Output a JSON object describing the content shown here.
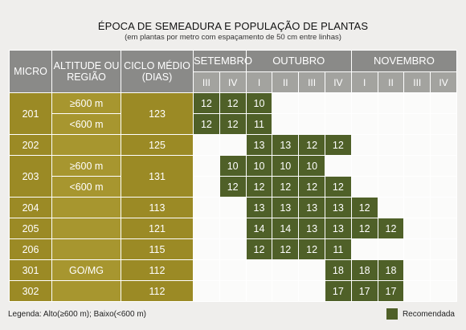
{
  "title": "ÉPOCA DE SEMEADURA E POPULAÇÃO DE PLANTAS",
  "subtitle": "(em plantas por metro com espaçamento de 50 cm entre linhas)",
  "headers": {
    "micro": "MICRO",
    "altitude": "ALTITUDE OU REGIÃO",
    "ciclo": "CICLO MÉDIO (DIAS)",
    "setembro": "SETEMBRO",
    "outubro": "OUTUBRO",
    "novembro": "NOVEMBRO",
    "periods": [
      "III",
      "IV",
      "I",
      "II",
      "III",
      "IV",
      "I",
      "II",
      "III",
      "IV"
    ]
  },
  "rows": [
    {
      "micro": "201",
      "altitude": "≥600 m",
      "ciclo": "123",
      "cells": [
        "12",
        "12",
        "10",
        "",
        "",
        "",
        "",
        "",
        "",
        ""
      ]
    },
    {
      "micro": "",
      "altitude": "<600 m",
      "ciclo": "",
      "cells": [
        "12",
        "12",
        "11",
        "",
        "",
        "",
        "",
        "",
        "",
        ""
      ]
    },
    {
      "micro": "202",
      "altitude": "",
      "ciclo": "125",
      "cells": [
        "",
        "",
        "13",
        "13",
        "12",
        "12",
        "",
        "",
        "",
        ""
      ]
    },
    {
      "micro": "203",
      "altitude": "≥600 m",
      "ciclo": "131",
      "cells": [
        "",
        "10",
        "10",
        "10",
        "10",
        "",
        "",
        "",
        "",
        ""
      ]
    },
    {
      "micro": "",
      "altitude": "<600 m",
      "ciclo": "",
      "cells": [
        "",
        "12",
        "12",
        "12",
        "12",
        "12",
        "",
        "",
        "",
        ""
      ]
    },
    {
      "micro": "204",
      "altitude": "",
      "ciclo": "113",
      "cells": [
        "",
        "",
        "13",
        "13",
        "13",
        "13",
        "12",
        "",
        "",
        ""
      ]
    },
    {
      "micro": "205",
      "altitude": "",
      "ciclo": "121",
      "cells": [
        "",
        "",
        "14",
        "14",
        "13",
        "13",
        "12",
        "12",
        "",
        ""
      ]
    },
    {
      "micro": "206",
      "altitude": "",
      "ciclo": "115",
      "cells": [
        "",
        "",
        "12",
        "12",
        "12",
        "11",
        "",
        "",
        "",
        ""
      ]
    },
    {
      "micro": "301",
      "altitude": "GO/MG",
      "ciclo": "112",
      "cells": [
        "",
        "",
        "",
        "",
        "",
        "18",
        "18",
        "18",
        "",
        ""
      ]
    },
    {
      "micro": "302",
      "altitude": "",
      "ciclo": "112",
      "cells": [
        "",
        "",
        "",
        "",
        "",
        "17",
        "17",
        "17",
        "",
        ""
      ]
    }
  ],
  "legend": {
    "text": "Legenda: Alto(≥600 m); Baixo(<600 m)",
    "recommended": "Recomendada",
    "recommended_color": "#4f6028"
  }
}
